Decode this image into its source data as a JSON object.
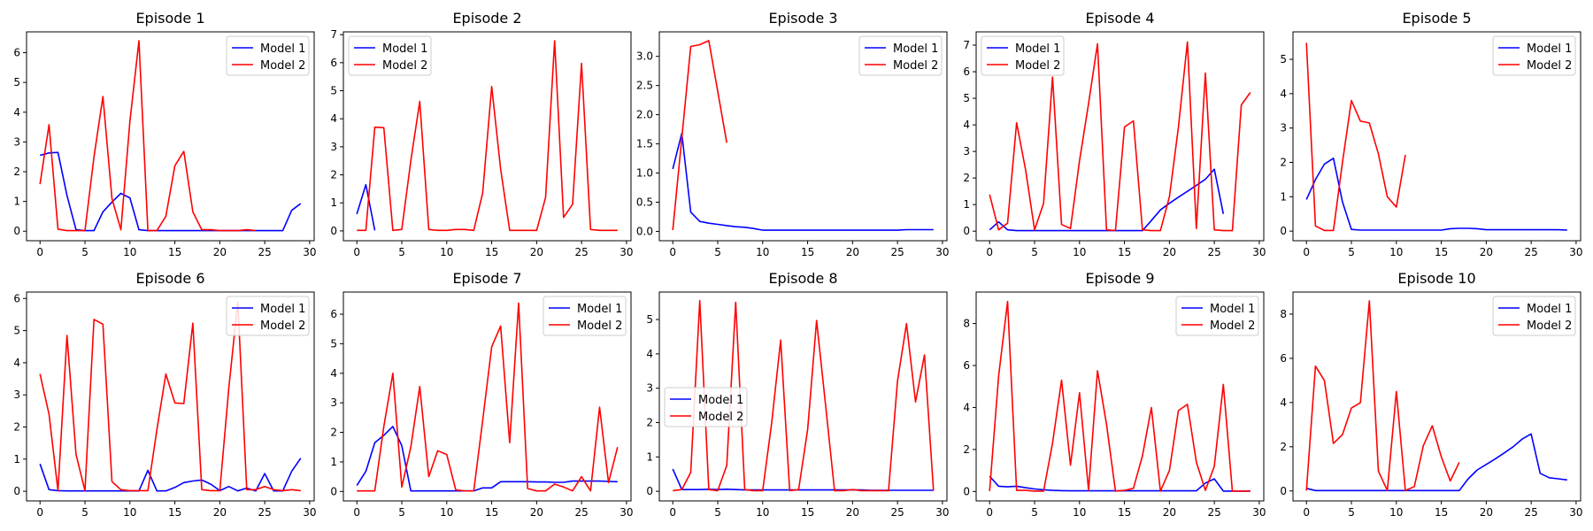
{
  "chart_data": [
    {
      "type": "line",
      "title": "Episode 1",
      "xlim": [
        -1.5,
        30.5
      ],
      "ylim": [
        -0.32,
        6.7
      ],
      "xticks": [
        0,
        5,
        10,
        15,
        20,
        25,
        30
      ],
      "yticks": [
        0,
        1,
        2,
        3,
        4,
        5,
        6
      ],
      "legend": "top-right",
      "series": [
        {
          "name": "Model 1",
          "color": "#0000ff",
          "values": [
            2.55,
            2.63,
            2.65,
            1.2,
            0.05,
            0.02,
            0.02,
            0.65,
            0.98,
            1.27,
            1.12,
            0.05,
            0.02,
            0.02,
            0.02,
            0.02,
            0.02,
            0.02,
            0.02,
            0.02,
            0.02,
            0.02,
            0.02,
            0.02,
            0.02,
            0.02,
            0.02,
            0.02,
            0.7,
            0.93
          ]
        },
        {
          "name": "Model 2",
          "color": "#ff0000",
          "values": [
            1.58,
            3.58,
            0.07,
            0.02,
            0.02,
            0.02,
            2.5,
            4.53,
            1.1,
            0.05,
            3.7,
            6.4,
            0.02,
            0.02,
            0.5,
            2.2,
            2.68,
            0.65,
            0.05,
            0.05,
            0.02,
            0.02,
            0.02,
            0.05,
            0.02,
            null,
            null,
            null,
            null,
            null
          ]
        }
      ]
    },
    {
      "type": "line",
      "title": "Episode 2",
      "xlim": [
        -1.5,
        30.5
      ],
      "ylim": [
        -0.35,
        7.1
      ],
      "xticks": [
        0,
        5,
        10,
        15,
        20,
        25,
        30
      ],
      "yticks": [
        0,
        1,
        2,
        3,
        4,
        5,
        6,
        7
      ],
      "legend": "top-left",
      "series": [
        {
          "name": "Model 1",
          "color": "#0000ff",
          "values": [
            0.6,
            1.65,
            0.02,
            null,
            null,
            null,
            null,
            null,
            null,
            null,
            null,
            null,
            null,
            null,
            null,
            null,
            null,
            null,
            null,
            null,
            null,
            null,
            null,
            null,
            null,
            null,
            null,
            null,
            null,
            null
          ]
        },
        {
          "name": "Model 2",
          "color": "#ff0000",
          "values": [
            0.02,
            0.02,
            3.7,
            3.68,
            0.02,
            0.05,
            2.5,
            4.62,
            0.05,
            0.02,
            0.02,
            0.05,
            0.05,
            0.02,
            1.35,
            5.15,
            2.2,
            0.02,
            0.02,
            0.02,
            0.02,
            1.2,
            6.78,
            0.48,
            0.95,
            5.98,
            0.05,
            0.02,
            0.02,
            0.02
          ]
        }
      ]
    },
    {
      "type": "line",
      "title": "Episode 3",
      "xlim": [
        -1.5,
        30.5
      ],
      "ylim": [
        -0.16,
        3.42
      ],
      "xticks": [
        0,
        5,
        10,
        15,
        20,
        25,
        30
      ],
      "yticks": [
        0.0,
        0.5,
        1.0,
        1.5,
        2.0,
        2.5,
        3.0
      ],
      "yformat": 1,
      "legend": "top-right",
      "series": [
        {
          "name": "Model 1",
          "color": "#0000ff",
          "values": [
            1.07,
            1.68,
            0.33,
            0.17,
            0.14,
            0.12,
            0.1,
            0.08,
            0.07,
            0.05,
            0.02,
            0.02,
            0.02,
            0.02,
            0.02,
            0.02,
            0.02,
            0.02,
            0.02,
            0.02,
            0.02,
            0.02,
            0.02,
            0.02,
            0.02,
            0.02,
            0.03,
            0.03,
            0.03,
            0.03
          ]
        },
        {
          "name": "Model 2",
          "color": "#ff0000",
          "values": [
            0.02,
            1.6,
            3.17,
            3.2,
            3.27,
            2.4,
            1.52,
            null,
            null,
            null,
            null,
            null,
            null,
            null,
            null,
            null,
            null,
            null,
            null,
            null,
            null,
            null,
            null,
            null,
            null,
            null,
            null,
            null,
            null,
            null
          ]
        }
      ]
    },
    {
      "type": "line",
      "title": "Episode 4",
      "xlim": [
        -1.5,
        30.5
      ],
      "ylim": [
        -0.36,
        7.5
      ],
      "xticks": [
        0,
        5,
        10,
        15,
        20,
        25,
        30
      ],
      "yticks": [
        0,
        1,
        2,
        3,
        4,
        5,
        6,
        7
      ],
      "legend": "top-left",
      "series": [
        {
          "name": "Model 1",
          "color": "#0000ff",
          "values": [
            0.05,
            0.35,
            0.05,
            0.02,
            0.02,
            0.02,
            0.02,
            0.02,
            0.02,
            0.02,
            0.02,
            0.02,
            0.02,
            0.02,
            0.02,
            0.02,
            0.02,
            0.02,
            0.4,
            0.8,
            1.05,
            1.28,
            1.5,
            1.72,
            1.95,
            2.33,
            0.65,
            null,
            null,
            null
          ]
        },
        {
          "name": "Model 2",
          "color": "#ff0000",
          "values": [
            1.38,
            0.05,
            0.3,
            4.08,
            2.3,
            0.05,
            1.05,
            5.8,
            0.25,
            0.1,
            2.65,
            4.8,
            7.05,
            0.05,
            0.02,
            3.92,
            4.15,
            0.05,
            0.02,
            0.02,
            1.3,
            3.9,
            7.12,
            0.1,
            5.95,
            0.05,
            0.02,
            0.02,
            4.75,
            5.22
          ]
        }
      ]
    },
    {
      "type": "line",
      "title": "Episode 5",
      "xlim": [
        -1.5,
        30.5
      ],
      "ylim": [
        -0.28,
        5.8
      ],
      "xticks": [
        0,
        5,
        10,
        15,
        20,
        25,
        30
      ],
      "yticks": [
        0,
        1,
        2,
        3,
        4,
        5
      ],
      "legend": "top-right",
      "series": [
        {
          "name": "Model 1",
          "color": "#0000ff",
          "values": [
            0.92,
            1.5,
            1.95,
            2.12,
            0.85,
            0.05,
            0.03,
            0.03,
            0.03,
            0.03,
            0.03,
            0.03,
            0.03,
            0.03,
            0.03,
            0.03,
            0.07,
            0.08,
            0.08,
            0.07,
            0.04,
            0.04,
            0.04,
            0.04,
            0.04,
            0.04,
            0.04,
            0.04,
            0.04,
            0.03
          ]
        },
        {
          "name": "Model 2",
          "color": "#ff0000",
          "values": [
            5.48,
            0.15,
            0.02,
            0.02,
            2.0,
            3.8,
            3.2,
            3.15,
            2.25,
            1.0,
            0.7,
            2.22,
            null,
            null,
            null,
            null,
            null,
            null,
            null,
            null,
            null,
            null,
            null,
            null,
            null,
            null,
            null,
            null,
            null,
            null
          ]
        }
      ]
    },
    {
      "type": "line",
      "title": "Episode 6",
      "xlim": [
        -1.5,
        30.5
      ],
      "ylim": [
        -0.3,
        6.2
      ],
      "xticks": [
        0,
        5,
        10,
        15,
        20,
        25,
        30
      ],
      "yticks": [
        0,
        1,
        2,
        3,
        4,
        5,
        6
      ],
      "legend": "top-right",
      "series": [
        {
          "name": "Model 1",
          "color": "#0000ff",
          "values": [
            0.85,
            0.05,
            0.02,
            0.01,
            0.01,
            0.01,
            0.01,
            0.01,
            0.01,
            0.01,
            0.01,
            0.01,
            0.65,
            0.01,
            0.01,
            0.12,
            0.27,
            0.32,
            0.35,
            0.22,
            0.02,
            0.15,
            0.01,
            0.1,
            0.01,
            0.55,
            0.01,
            0.01,
            0.62,
            1.03
          ]
        },
        {
          "name": "Model 2",
          "color": "#ff0000",
          "values": [
            3.65,
            2.4,
            0.02,
            4.85,
            1.15,
            0.02,
            5.35,
            5.2,
            0.3,
            0.05,
            0.02,
            0.02,
            0.02,
            1.92,
            3.65,
            2.75,
            2.73,
            5.23,
            0.05,
            0.02,
            0.02,
            3.2,
            5.9,
            0.05,
            0.05,
            0.15,
            0.05,
            0.02,
            0.05,
            0.02
          ]
        }
      ]
    },
    {
      "type": "line",
      "title": "Episode 7",
      "xlim": [
        -1.5,
        30.5
      ],
      "ylim": [
        -0.32,
        6.75
      ],
      "xticks": [
        0,
        5,
        10,
        15,
        20,
        25,
        30
      ],
      "yticks": [
        0,
        1,
        2,
        3,
        4,
        5,
        6
      ],
      "legend": "top-right",
      "series": [
        {
          "name": "Model 1",
          "color": "#0000ff",
          "values": [
            0.2,
            0.68,
            1.65,
            1.9,
            2.2,
            1.55,
            0.02,
            0.02,
            0.02,
            0.02,
            0.02,
            0.02,
            0.02,
            0.02,
            0.12,
            0.12,
            0.33,
            0.33,
            0.33,
            0.33,
            0.32,
            0.32,
            0.31,
            0.31,
            0.35,
            0.35,
            0.35,
            0.35,
            0.34,
            0.33
          ]
        },
        {
          "name": "Model 2",
          "color": "#ff0000",
          "values": [
            0.02,
            0.02,
            0.02,
            2.2,
            4.0,
            0.15,
            1.5,
            3.55,
            0.5,
            1.38,
            1.25,
            0.05,
            0.02,
            0.02,
            2.4,
            4.9,
            5.6,
            1.65,
            6.38,
            0.1,
            0.02,
            0.02,
            0.25,
            0.15,
            0.02,
            0.5,
            0.02,
            2.85,
            0.3,
            1.5
          ]
        }
      ]
    },
    {
      "type": "line",
      "title": "Episode 8",
      "xlim": [
        -1.5,
        30.5
      ],
      "ylim": [
        -0.28,
        5.8
      ],
      "xticks": [
        0,
        5,
        10,
        15,
        20,
        25,
        30
      ],
      "yticks": [
        0,
        1,
        2,
        3,
        4,
        5
      ],
      "legend": "center-left",
      "series": [
        {
          "name": "Model 1",
          "color": "#0000ff",
          "values": [
            0.65,
            0.05,
            0.05,
            0.05,
            0.06,
            0.05,
            0.06,
            0.05,
            0.04,
            0.04,
            0.04,
            0.04,
            0.04,
            0.04,
            0.04,
            0.04,
            0.04,
            0.04,
            0.04,
            0.04,
            0.04,
            0.04,
            0.03,
            0.03,
            0.03,
            0.03,
            0.03,
            0.03,
            0.03,
            0.03
          ]
        },
        {
          "name": "Model 2",
          "color": "#ff0000",
          "values": [
            0.02,
            0.05,
            0.55,
            5.55,
            0.05,
            0.02,
            0.75,
            5.5,
            0.05,
            0.02,
            0.02,
            2.0,
            4.4,
            0.02,
            0.05,
            1.8,
            4.97,
            2.5,
            0.02,
            0.02,
            0.05,
            0.02,
            0.02,
            0.02,
            0.02,
            3.2,
            4.88,
            2.6,
            3.97,
            0.02
          ]
        }
      ]
    },
    {
      "type": "line",
      "title": "Episode 9",
      "xlim": [
        -1.5,
        30.5
      ],
      "ylim": [
        -0.45,
        9.5
      ],
      "xticks": [
        0,
        5,
        10,
        15,
        20,
        25,
        30
      ],
      "yticks": [
        0,
        2,
        4,
        6,
        8
      ],
      "legend": "top-right",
      "series": [
        {
          "name": "Model 1",
          "color": "#0000ff",
          "values": [
            0.72,
            0.25,
            0.22,
            0.25,
            0.18,
            0.12,
            0.08,
            0.05,
            0.04,
            0.03,
            0.03,
            0.03,
            0.03,
            0.03,
            0.03,
            0.03,
            0.03,
            0.03,
            0.03,
            0.03,
            0.03,
            0.03,
            0.03,
            0.03,
            0.4,
            0.6,
            0.02,
            0.02,
            0.02,
            0.02
          ]
        },
        {
          "name": "Model 2",
          "color": "#ff0000",
          "values": [
            0.02,
            5.5,
            9.05,
            0.05,
            0.05,
            0.02,
            0.02,
            2.3,
            5.3,
            1.25,
            4.7,
            0.05,
            5.75,
            3.2,
            0.02,
            0.05,
            0.15,
            1.7,
            4.0,
            0.02,
            1.0,
            3.85,
            4.15,
            1.4,
            0.05,
            1.2,
            5.1,
            0.02,
            0.02,
            0.02
          ]
        }
      ]
    },
    {
      "type": "line",
      "title": "Episode 10",
      "xlim": [
        -1.5,
        30.5
      ],
      "ylim": [
        -0.45,
        9.0
      ],
      "xticks": [
        0,
        5,
        10,
        15,
        20,
        25,
        30
      ],
      "yticks": [
        0,
        2,
        4,
        6,
        8
      ],
      "legend": "top-right",
      "series": [
        {
          "name": "Model 1",
          "color": "#0000ff",
          "values": [
            0.12,
            0.02,
            0.02,
            0.02,
            0.02,
            0.02,
            0.02,
            0.02,
            0.02,
            0.02,
            0.02,
            0.02,
            0.02,
            0.02,
            0.02,
            0.02,
            0.02,
            0.02,
            0.55,
            0.95,
            1.2,
            1.45,
            1.72,
            2.0,
            2.35,
            2.58,
            0.8,
            0.6,
            0.55,
            0.5
          ]
        },
        {
          "name": "Model 2",
          "color": "#ff0000",
          "values": [
            0.02,
            5.65,
            5.0,
            2.15,
            2.55,
            3.75,
            4.0,
            8.6,
            0.9,
            0.02,
            4.5,
            0.02,
            0.2,
            2.05,
            2.95,
            1.55,
            0.45,
            1.3,
            null,
            null,
            null,
            null,
            null,
            null,
            null,
            null,
            null,
            null,
            null,
            null
          ]
        }
      ]
    }
  ]
}
